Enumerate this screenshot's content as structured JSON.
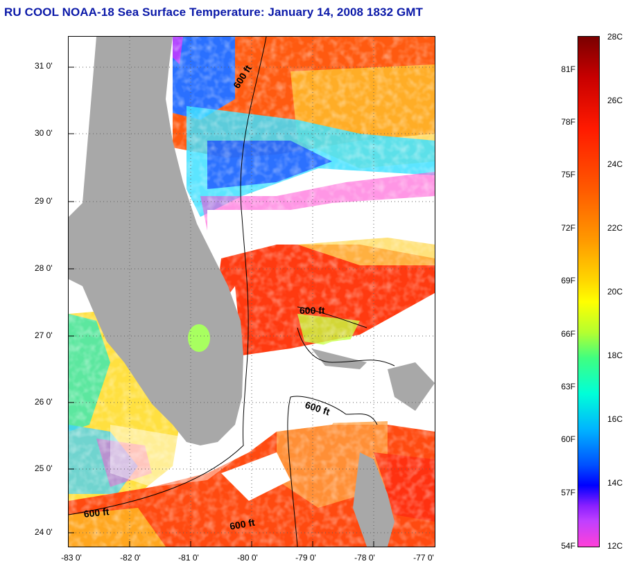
{
  "title": "RU COOL  NOAA-18  Sea Surface Temperature:  January 14, 2008 1832 GMT",
  "map": {
    "lat_ticks": [
      "31 0'",
      "30 0'",
      "29 0'",
      "28 0'",
      "27 0'",
      "26 0'",
      "25 0'",
      "24 0'"
    ],
    "lon_ticks": [
      "-83 0'",
      "-82 0'",
      "-81 0'",
      "-80 0'",
      "-79 0'",
      "-78 0'",
      "-77 0'"
    ],
    "contour_label": "600 ft",
    "colors": {
      "land": "#a8a8a8",
      "cloud": "#ffffff",
      "grid": "#606060"
    }
  },
  "colorbar": {
    "fahrenheit": [
      "81F",
      "78F",
      "75F",
      "72F",
      "69F",
      "66F",
      "63F",
      "60F",
      "57F",
      "54F"
    ],
    "celsius": [
      "28C",
      "26C",
      "24C",
      "22C",
      "20C",
      "18C",
      "16C",
      "14C",
      "12C"
    ]
  }
}
